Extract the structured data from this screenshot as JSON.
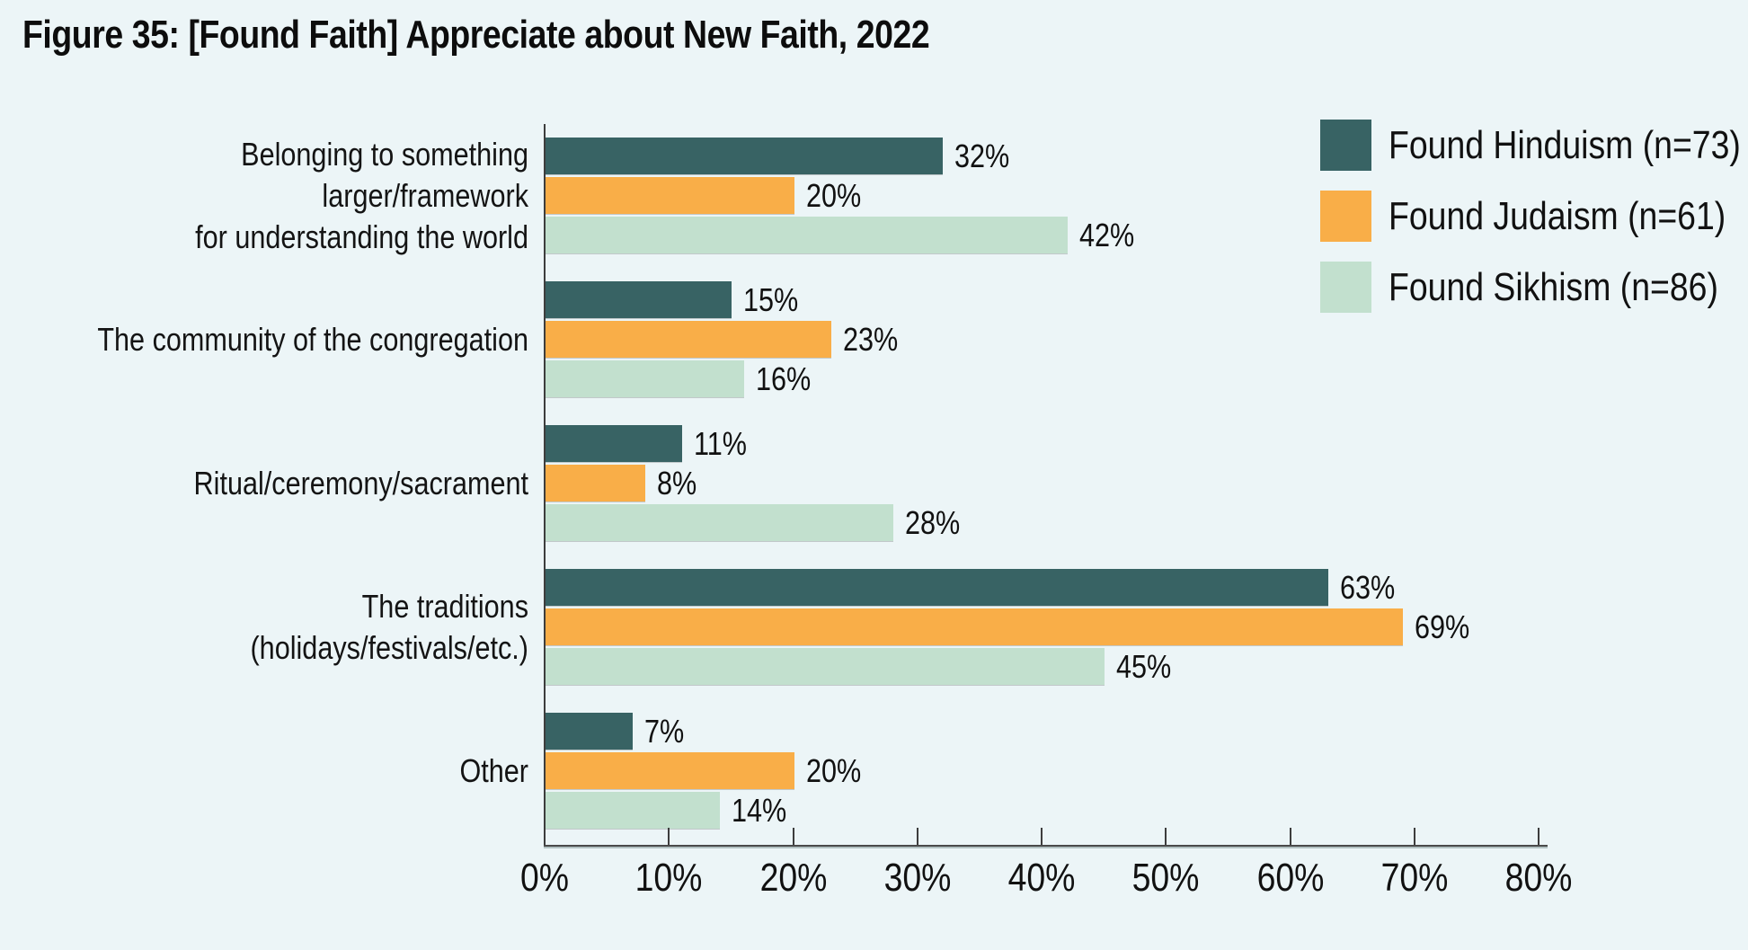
{
  "title": "Figure 35: [Found Faith] Appreciate about New Faith, 2022",
  "colors": {
    "background": "#ecf5f7",
    "hinduism": "#386364",
    "judaism": "#f9ae48",
    "sikhism": "#c2e0ce",
    "axis": "#3d3d3d",
    "text": "#161616"
  },
  "chart_data": {
    "type": "bar",
    "orientation": "horizontal",
    "title": "Figure 35: [Found Faith] Appreciate about New Faith, 2022",
    "categories": [
      "Belonging to something larger/framework\nfor understanding the world",
      "The community of the congregation",
      "Ritual/ceremony/sacrament",
      "The traditions (holidays/festivals/etc.)",
      "Other"
    ],
    "series": [
      {
        "name": "Found Hinduism (n=73)",
        "color": "#386364",
        "values": [
          32,
          15,
          11,
          63,
          7
        ]
      },
      {
        "name": "Found Judaism (n=61)",
        "color": "#f9ae48",
        "values": [
          20,
          23,
          8,
          69,
          20
        ]
      },
      {
        "name": "Found Sikhism (n=86)",
        "color": "#c2e0ce",
        "values": [
          42,
          16,
          28,
          45,
          14
        ]
      }
    ],
    "value_suffix": "%",
    "xlabel": "",
    "ylabel": "",
    "xlim": [
      0,
      80
    ],
    "x_ticks": [
      "0%",
      "10%",
      "20%",
      "30%",
      "40%",
      "50%",
      "60%",
      "70%",
      "80%"
    ],
    "grid": false,
    "legend_position": "top-right",
    "data_labels": true
  }
}
